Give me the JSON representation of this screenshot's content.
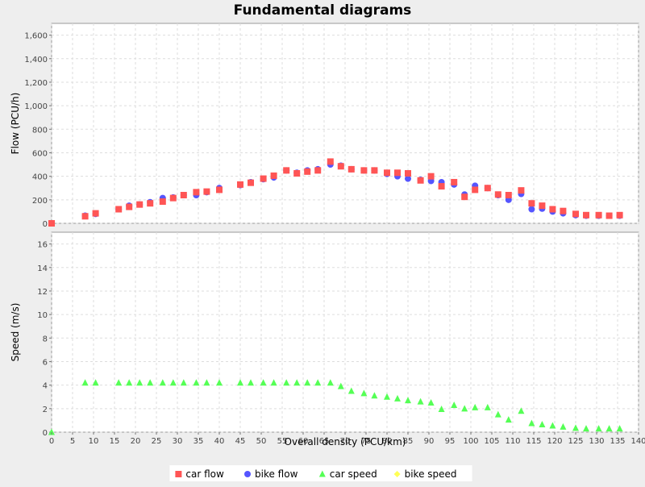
{
  "chart_data": {
    "type": "scatter",
    "title": "Fundamental diagrams",
    "xlabel": "Overall density (PCU/km)",
    "xlim": [
      0,
      140
    ],
    "xticks": [
      0,
      5,
      10,
      15,
      20,
      25,
      30,
      35,
      40,
      45,
      50,
      55,
      60,
      65,
      70,
      75,
      80,
      85,
      90,
      95,
      100,
      105,
      110,
      115,
      120,
      125,
      130,
      135,
      140
    ],
    "grid": true,
    "legend_position": "bottom",
    "plots": [
      {
        "ylabel": "Flow (PCU/h)",
        "ylim": [
          0,
          1700
        ],
        "yticks": [
          {
            "value": 0,
            "label": "0"
          },
          {
            "value": 200,
            "label": "200"
          },
          {
            "value": 400,
            "label": "400"
          },
          {
            "value": 600,
            "label": "600"
          },
          {
            "value": 800,
            "label": "800"
          },
          {
            "value": 1000,
            "label": "1,000"
          },
          {
            "value": 1200,
            "label": "1,200"
          },
          {
            "value": 1400,
            "label": "1,400"
          },
          {
            "value": 1600,
            "label": "1,600"
          }
        ],
        "series": [
          {
            "name": "bike flow",
            "marker": "circle",
            "color": "#5555ff",
            "x": [
              8,
              10.5,
              16,
              18.5,
              21,
              23.5,
              26.5,
              29,
              31.5,
              34.5,
              37,
              40,
              45,
              47.5,
              50.5,
              53,
              56,
              58.5,
              61,
              63.5,
              66.5,
              69,
              71.5,
              74.5,
              77,
              80,
              82.5,
              85,
              88,
              90.5,
              93,
              96,
              98.5,
              101,
              104,
              106.5,
              109,
              112,
              114.5,
              117,
              119.5,
              122,
              125,
              127.5,
              130.5,
              133,
              135.5
            ],
            "y": [
              65,
              80,
              120,
              150,
              160,
              180,
              215,
              220,
              240,
              240,
              265,
              300,
              325,
              350,
              375,
              390,
              450,
              430,
              450,
              460,
              500,
              490,
              460,
              450,
              450,
              420,
              400,
              380,
              370,
              360,
              350,
              330,
              245,
              320,
              300,
              240,
              200,
              250,
              120,
              125,
              100,
              85,
              70,
              65,
              65,
              65,
              65
            ]
          },
          {
            "name": "car flow",
            "marker": "square",
            "color": "#ff5555",
            "x": [
              0,
              8,
              10.5,
              16,
              18.5,
              21,
              23.5,
              26.5,
              29,
              31.5,
              34.5,
              37,
              40,
              45,
              47.5,
              50.5,
              53,
              56,
              58.5,
              61,
              63.5,
              66.5,
              69,
              71.5,
              74.5,
              77,
              80,
              82.5,
              85,
              88,
              90.5,
              93,
              96,
              98.5,
              101,
              104,
              106.5,
              109,
              112,
              114.5,
              117,
              119.5,
              122,
              125,
              127.5,
              130.5,
              133,
              135.5
            ],
            "y": [
              0,
              60,
              85,
              120,
              140,
              160,
              170,
              185,
              215,
              240,
              265,
              270,
              285,
              330,
              345,
              380,
              405,
              450,
              425,
              440,
              450,
              525,
              485,
              460,
              450,
              450,
              430,
              430,
              425,
              365,
              400,
              315,
              350,
              225,
              285,
              300,
              245,
              240,
              280,
              170,
              150,
              120,
              105,
              80,
              70,
              70,
              65,
              70
            ]
          }
        ]
      },
      {
        "ylabel": "Speed (m/s)",
        "ylim": [
          0,
          17
        ],
        "yticks": [
          {
            "value": 0,
            "label": "0"
          },
          {
            "value": 2,
            "label": "2"
          },
          {
            "value": 4,
            "label": "4"
          },
          {
            "value": 6,
            "label": "6"
          },
          {
            "value": 8,
            "label": "8"
          },
          {
            "value": 10,
            "label": "10"
          },
          {
            "value": 12,
            "label": "12"
          },
          {
            "value": 14,
            "label": "14"
          },
          {
            "value": 16,
            "label": "16"
          }
        ],
        "series": [
          {
            "name": "car speed",
            "marker": "triangle",
            "color": "#55ff55",
            "x": [
              0,
              8,
              10.5,
              16,
              18.5,
              21,
              23.5,
              26.5,
              29,
              31.5,
              34.5,
              37,
              40,
              45,
              47.5,
              50.5,
              53,
              56,
              58.5,
              61,
              63.5,
              66.5,
              69,
              71.5,
              74.5,
              77,
              80,
              82.5,
              85,
              88,
              90.5,
              93,
              96,
              98.5,
              101,
              104,
              106.5,
              109,
              112,
              114.5,
              117,
              119.5,
              122,
              125,
              127.5,
              130.5,
              133,
              135.5
            ],
            "y": [
              0,
              4.2,
              4.2,
              4.2,
              4.2,
              4.2,
              4.2,
              4.2,
              4.2,
              4.2,
              4.2,
              4.2,
              4.2,
              4.2,
              4.2,
              4.2,
              4.2,
              4.2,
              4.2,
              4.2,
              4.2,
              4.2,
              3.9,
              3.5,
              3.3,
              3.1,
              3.0,
              2.85,
              2.7,
              2.6,
              2.5,
              1.95,
              2.3,
              2.0,
              2.1,
              2.1,
              1.5,
              1.05,
              1.8,
              0.75,
              0.65,
              0.55,
              0.45,
              0.35,
              0.3,
              0.3,
              0.3,
              0.3
            ]
          },
          {
            "name": "bike speed",
            "marker": "diamond",
            "color": "#ffff55",
            "x": [],
            "y": []
          }
        ]
      }
    ],
    "legend": [
      {
        "label": "car flow",
        "marker": "square",
        "color": "#ff5555"
      },
      {
        "label": "bike flow",
        "marker": "circle",
        "color": "#5555ff"
      },
      {
        "label": "car speed",
        "marker": "triangle",
        "color": "#55ff55"
      },
      {
        "label": "bike speed",
        "marker": "diamond",
        "color": "#ffff55"
      }
    ]
  }
}
